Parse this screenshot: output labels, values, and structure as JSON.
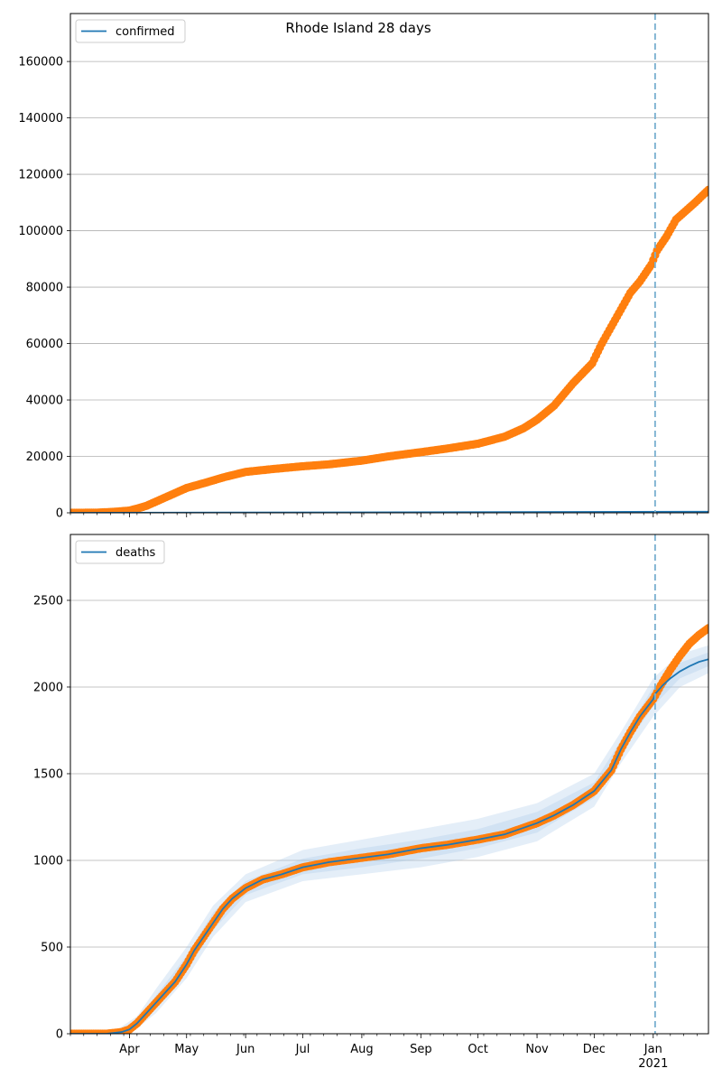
{
  "figure": {
    "title": "Rhode Island 28 days"
  },
  "chart_data": [
    {
      "type": "scatter",
      "title": "",
      "xlabel": "",
      "ylabel": "",
      "legend": {
        "entries": [
          "confirmed"
        ],
        "placement": "top-left"
      },
      "grid": true,
      "x_range": [
        "2020-03-01",
        "2021-01-30"
      ],
      "ylim": [
        0,
        177000
      ],
      "yticks": [
        0,
        20000,
        40000,
        60000,
        80000,
        100000,
        120000,
        140000,
        160000
      ],
      "forecast_start": "2021-01-02",
      "series": [
        {
          "name": "confirmed",
          "style": "line",
          "color": "#1f77b4",
          "points": [
            [
              "2020-03-01",
              0
            ],
            [
              "2021-01-30",
              400
            ]
          ]
        },
        {
          "style": "scatter",
          "color": "#ff7f0e",
          "points": [
            [
              "2020-03-01",
              0
            ],
            [
              "2020-03-15",
              50
            ],
            [
              "2020-03-25",
              400
            ],
            [
              "2020-04-01",
              800
            ],
            [
              "2020-04-05",
              1500
            ],
            [
              "2020-04-10",
              2500
            ],
            [
              "2020-04-15",
              4000
            ],
            [
              "2020-04-20",
              5500
            ],
            [
              "2020-04-25",
              7000
            ],
            [
              "2020-05-01",
              8800
            ],
            [
              "2020-05-10",
              10500
            ],
            [
              "2020-05-20",
              12500
            ],
            [
              "2020-06-01",
              14500
            ],
            [
              "2020-06-15",
              15500
            ],
            [
              "2020-07-01",
              16500
            ],
            [
              "2020-07-15",
              17200
            ],
            [
              "2020-08-01",
              18500
            ],
            [
              "2020-08-15",
              20000
            ],
            [
              "2020-09-01",
              21500
            ],
            [
              "2020-09-15",
              22800
            ],
            [
              "2020-10-01",
              24500
            ],
            [
              "2020-10-15",
              27000
            ],
            [
              "2020-10-25",
              30000
            ],
            [
              "2020-11-01",
              33000
            ],
            [
              "2020-11-10",
              38000
            ],
            [
              "2020-11-20",
              46000
            ],
            [
              "2020-11-30",
              53000
            ],
            [
              "2020-12-05",
              60000
            ],
            [
              "2020-12-10",
              66000
            ],
            [
              "2020-12-15",
              72000
            ],
            [
              "2020-12-20",
              78000
            ],
            [
              "2020-12-25",
              82000
            ],
            [
              "2020-12-31",
              88000
            ],
            [
              "2021-01-03",
              93000
            ],
            [
              "2021-01-08",
              98000
            ],
            [
              "2021-01-13",
              104000
            ],
            [
              "2021-01-18",
              107000
            ],
            [
              "2021-01-23",
              110000
            ],
            [
              "2021-01-30",
              114500
            ]
          ]
        }
      ]
    },
    {
      "type": "scatter",
      "title": "",
      "xlabel": "",
      "ylabel": "",
      "legend": {
        "entries": [
          "deaths"
        ],
        "placement": "top-left"
      },
      "grid": true,
      "x_range": [
        "2020-03-01",
        "2021-01-30"
      ],
      "ylim": [
        0,
        2880
      ],
      "yticks": [
        0,
        500,
        1000,
        1500,
        2000,
        2500
      ],
      "xticks": [
        "Apr",
        "May",
        "Jun",
        "Jul",
        "Aug",
        "Sep",
        "Oct",
        "Nov",
        "Dec",
        "Jan"
      ],
      "xtick_dates": [
        "2020-04-01",
        "2020-05-01",
        "2020-06-01",
        "2020-07-01",
        "2020-08-01",
        "2020-09-01",
        "2020-10-01",
        "2020-11-01",
        "2020-12-01",
        "2021-01-01"
      ],
      "year_label": "2021",
      "forecast_start": "2021-01-02",
      "observed": {
        "color": "#ff7f0e",
        "points": [
          [
            "2020-03-01",
            0
          ],
          [
            "2020-03-20",
            0
          ],
          [
            "2020-03-28",
            10
          ],
          [
            "2020-04-01",
            25
          ],
          [
            "2020-04-05",
            60
          ],
          [
            "2020-04-10",
            120
          ],
          [
            "2020-04-15",
            180
          ],
          [
            "2020-04-20",
            240
          ],
          [
            "2020-04-25",
            300
          ],
          [
            "2020-05-01",
            400
          ],
          [
            "2020-05-05",
            480
          ],
          [
            "2020-05-10",
            560
          ],
          [
            "2020-05-15",
            640
          ],
          [
            "2020-05-20",
            720
          ],
          [
            "2020-05-25",
            780
          ],
          [
            "2020-06-01",
            840
          ],
          [
            "2020-06-10",
            890
          ],
          [
            "2020-06-20",
            920
          ],
          [
            "2020-07-01",
            960
          ],
          [
            "2020-07-15",
            990
          ],
          [
            "2020-08-01",
            1015
          ],
          [
            "2020-08-15",
            1035
          ],
          [
            "2020-09-01",
            1070
          ],
          [
            "2020-09-15",
            1090
          ],
          [
            "2020-10-01",
            1120
          ],
          [
            "2020-10-15",
            1150
          ],
          [
            "2020-11-01",
            1215
          ],
          [
            "2020-11-10",
            1260
          ],
          [
            "2020-11-20",
            1320
          ],
          [
            "2020-12-01",
            1400
          ],
          [
            "2020-12-10",
            1520
          ],
          [
            "2020-12-15",
            1640
          ],
          [
            "2020-12-20",
            1740
          ],
          [
            "2020-12-25",
            1830
          ],
          [
            "2021-01-01",
            1930
          ],
          [
            "2021-01-05",
            2010
          ],
          [
            "2021-01-10",
            2100
          ],
          [
            "2021-01-15",
            2180
          ],
          [
            "2021-01-20",
            2250
          ],
          [
            "2021-01-25",
            2300
          ],
          [
            "2021-01-30",
            2340
          ]
        ]
      },
      "fit": {
        "name": "deaths",
        "color": "#1f77b4",
        "points": [
          [
            "2020-03-01",
            0
          ],
          [
            "2020-03-20",
            0
          ],
          [
            "2020-03-28",
            10
          ],
          [
            "2020-04-01",
            25
          ],
          [
            "2020-04-05",
            60
          ],
          [
            "2020-04-10",
            120
          ],
          [
            "2020-04-15",
            180
          ],
          [
            "2020-04-20",
            240
          ],
          [
            "2020-04-25",
            300
          ],
          [
            "2020-05-01",
            400
          ],
          [
            "2020-05-05",
            480
          ],
          [
            "2020-05-10",
            560
          ],
          [
            "2020-05-15",
            640
          ],
          [
            "2020-05-20",
            720
          ],
          [
            "2020-05-25",
            780
          ],
          [
            "2020-06-01",
            840
          ],
          [
            "2020-06-10",
            890
          ],
          [
            "2020-06-20",
            920
          ],
          [
            "2020-07-01",
            960
          ],
          [
            "2020-07-15",
            990
          ],
          [
            "2020-08-01",
            1015
          ],
          [
            "2020-08-15",
            1035
          ],
          [
            "2020-09-01",
            1070
          ],
          [
            "2020-09-15",
            1090
          ],
          [
            "2020-10-01",
            1120
          ],
          [
            "2020-10-15",
            1150
          ],
          [
            "2020-11-01",
            1215
          ],
          [
            "2020-11-10",
            1260
          ],
          [
            "2020-11-20",
            1320
          ],
          [
            "2020-12-01",
            1400
          ],
          [
            "2020-12-10",
            1520
          ],
          [
            "2020-12-15",
            1640
          ],
          [
            "2020-12-20",
            1740
          ],
          [
            "2020-12-25",
            1830
          ],
          [
            "2021-01-01",
            1930
          ],
          [
            "2021-01-02",
            1960
          ],
          [
            "2021-01-06",
            2010
          ],
          [
            "2021-01-10",
            2050
          ],
          [
            "2021-01-15",
            2090
          ],
          [
            "2021-01-20",
            2120
          ],
          [
            "2021-01-25",
            2145
          ],
          [
            "2021-01-30",
            2160
          ]
        ]
      },
      "bands": [
        {
          "lower": [
            [
              "2020-03-01",
              0
            ],
            [
              "2020-03-25",
              0
            ],
            [
              "2020-04-05",
              30
            ],
            [
              "2020-04-15",
              120
            ],
            [
              "2020-05-01",
              320
            ],
            [
              "2020-05-15",
              560
            ],
            [
              "2020-06-01",
              760
            ],
            [
              "2020-07-01",
              880
            ],
            [
              "2020-08-01",
              920
            ],
            [
              "2020-09-01",
              960
            ],
            [
              "2020-10-01",
              1020
            ],
            [
              "2020-11-01",
              1110
            ],
            [
              "2020-12-01",
              1310
            ],
            [
              "2020-12-15",
              1560
            ],
            [
              "2021-01-01",
              1830
            ],
            [
              "2021-01-15",
              2000
            ],
            [
              "2021-01-30",
              2080
            ]
          ],
          "upper": [
            [
              "2020-03-01",
              0
            ],
            [
              "2020-03-25",
              20
            ],
            [
              "2020-04-05",
              100
            ],
            [
              "2020-04-15",
              260
            ],
            [
              "2020-05-01",
              500
            ],
            [
              "2020-05-15",
              740
            ],
            [
              "2020-06-01",
              920
            ],
            [
              "2020-07-01",
              1060
            ],
            [
              "2020-08-01",
              1120
            ],
            [
              "2020-09-01",
              1180
            ],
            [
              "2020-10-01",
              1240
            ],
            [
              "2020-11-01",
              1330
            ],
            [
              "2020-12-01",
              1500
            ],
            [
              "2020-12-15",
              1740
            ],
            [
              "2021-01-01",
              2050
            ],
            [
              "2021-01-15",
              2190
            ],
            [
              "2021-01-30",
              2240
            ]
          ]
        },
        {
          "lower": [
            [
              "2020-03-01",
              0
            ],
            [
              "2020-03-25",
              2
            ],
            [
              "2020-04-05",
              45
            ],
            [
              "2020-04-15",
              150
            ],
            [
              "2020-05-01",
              360
            ],
            [
              "2020-05-15",
              600
            ],
            [
              "2020-06-01",
              800
            ],
            [
              "2020-07-01",
              920
            ],
            [
              "2020-08-01",
              960
            ],
            [
              "2020-09-01",
              1010
            ],
            [
              "2020-10-01",
              1070
            ],
            [
              "2020-11-01",
              1160
            ],
            [
              "2020-12-01",
              1360
            ],
            [
              "2020-12-15",
              1620
            ],
            [
              "2021-01-01",
              1890
            ],
            [
              "2021-01-15",
              2050
            ],
            [
              "2021-01-30",
              2120
            ]
          ],
          "upper": [
            [
              "2020-03-01",
              0
            ],
            [
              "2020-03-25",
              12
            ],
            [
              "2020-04-05",
              80
            ],
            [
              "2020-04-15",
              220
            ],
            [
              "2020-05-01",
              450
            ],
            [
              "2020-05-15",
              700
            ],
            [
              "2020-06-01",
              880
            ],
            [
              "2020-07-01",
              1010
            ],
            [
              "2020-08-01",
              1070
            ],
            [
              "2020-09-01",
              1120
            ],
            [
              "2020-10-01",
              1180
            ],
            [
              "2020-11-01",
              1280
            ],
            [
              "2020-12-01",
              1450
            ],
            [
              "2020-12-15",
              1690
            ],
            [
              "2021-01-01",
              2000
            ],
            [
              "2021-01-15",
              2140
            ],
            [
              "2021-01-30",
              2200
            ]
          ]
        }
      ]
    }
  ],
  "colors": {
    "observed": "#ff7f0e",
    "fit": "#1f77b4",
    "band": "#a6c8e8",
    "forecast_line": "#7ab0d0",
    "grid": "#b0b0b0"
  }
}
